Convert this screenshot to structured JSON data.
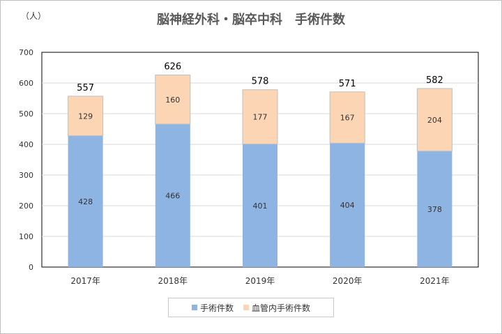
{
  "chart_data": {
    "type": "bar",
    "stacked": true,
    "title": "脳神経外科・脳卒中科　手術件数",
    "unit_label": "（人）",
    "categories": [
      "2017年",
      "2018年",
      "2019年",
      "2020年",
      "2021年"
    ],
    "series": [
      {
        "name": "手術件数",
        "values": [
          428,
          466,
          401,
          404,
          378
        ],
        "color": "#8eb4e3"
      },
      {
        "name": "血管内手術件数",
        "values": [
          129,
          160,
          177,
          167,
          204
        ],
        "color": "#fcd5b5"
      }
    ],
    "totals": [
      557,
      626,
      578,
      571,
      582
    ],
    "ylim": [
      0,
      700
    ],
    "yticks": [
      0,
      100,
      200,
      300,
      400,
      500,
      600,
      700
    ],
    "grid": true,
    "legend_position": "bottom"
  }
}
